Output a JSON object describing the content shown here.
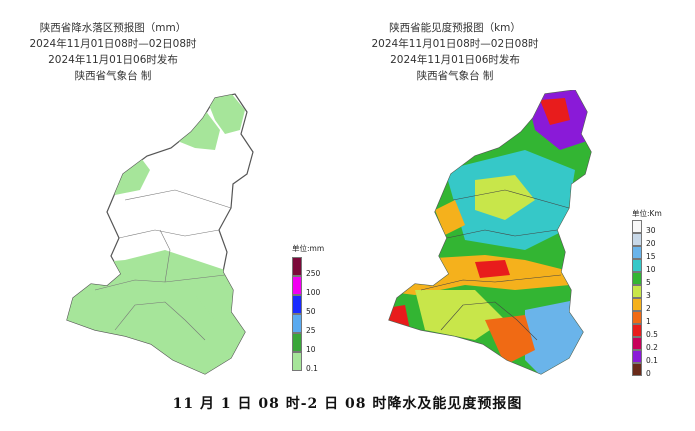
{
  "left_panel": {
    "title_lines": [
      "陕西省降水落区预报图（mm）",
      "2024年11月01日08时—02日08时",
      "2024年11月01日06时发布",
      "陕西省气象台  制"
    ],
    "legend_unit": "单位:mm",
    "legend": [
      {
        "label": "250",
        "color": "#7b0a3a"
      },
      {
        "label": "100",
        "color": "#f200f2"
      },
      {
        "label": "50",
        "color": "#1a2bff"
      },
      {
        "label": "25",
        "color": "#5aaaf0"
      },
      {
        "label": "10",
        "color": "#3aa63a"
      },
      {
        "label": "0.1",
        "color": "#a6e59a"
      }
    ]
  },
  "right_panel": {
    "title_lines": [
      "陕西省能见度预报图（km）",
      "2024年11月01日08时—02日08时",
      "2024年11月01日06时发布",
      "陕西省气象台  制"
    ],
    "legend_unit": "单位:Km",
    "legend": [
      {
        "label": "30",
        "color": "#f8f8f8"
      },
      {
        "label": "20",
        "color": "#c8d8e8"
      },
      {
        "label": "15",
        "color": "#6ab4ea"
      },
      {
        "label": "10",
        "color": "#36c8c8"
      },
      {
        "label": "5",
        "color": "#33b533"
      },
      {
        "label": "3",
        "color": "#c8e64a"
      },
      {
        "label": "2",
        "color": "#f5b11c"
      },
      {
        "label": "1",
        "color": "#f06a14"
      },
      {
        "label": "0.5",
        "color": "#e81c1c"
      },
      {
        "label": "0.2",
        "color": "#c8005a"
      },
      {
        "label": "0.1",
        "color": "#8a1ad8"
      },
      {
        "label": "0",
        "color": "#6a2a1a"
      }
    ]
  },
  "caption": "11 月 1 日 08 时-2 日 08 时降水及能见度预报图"
}
